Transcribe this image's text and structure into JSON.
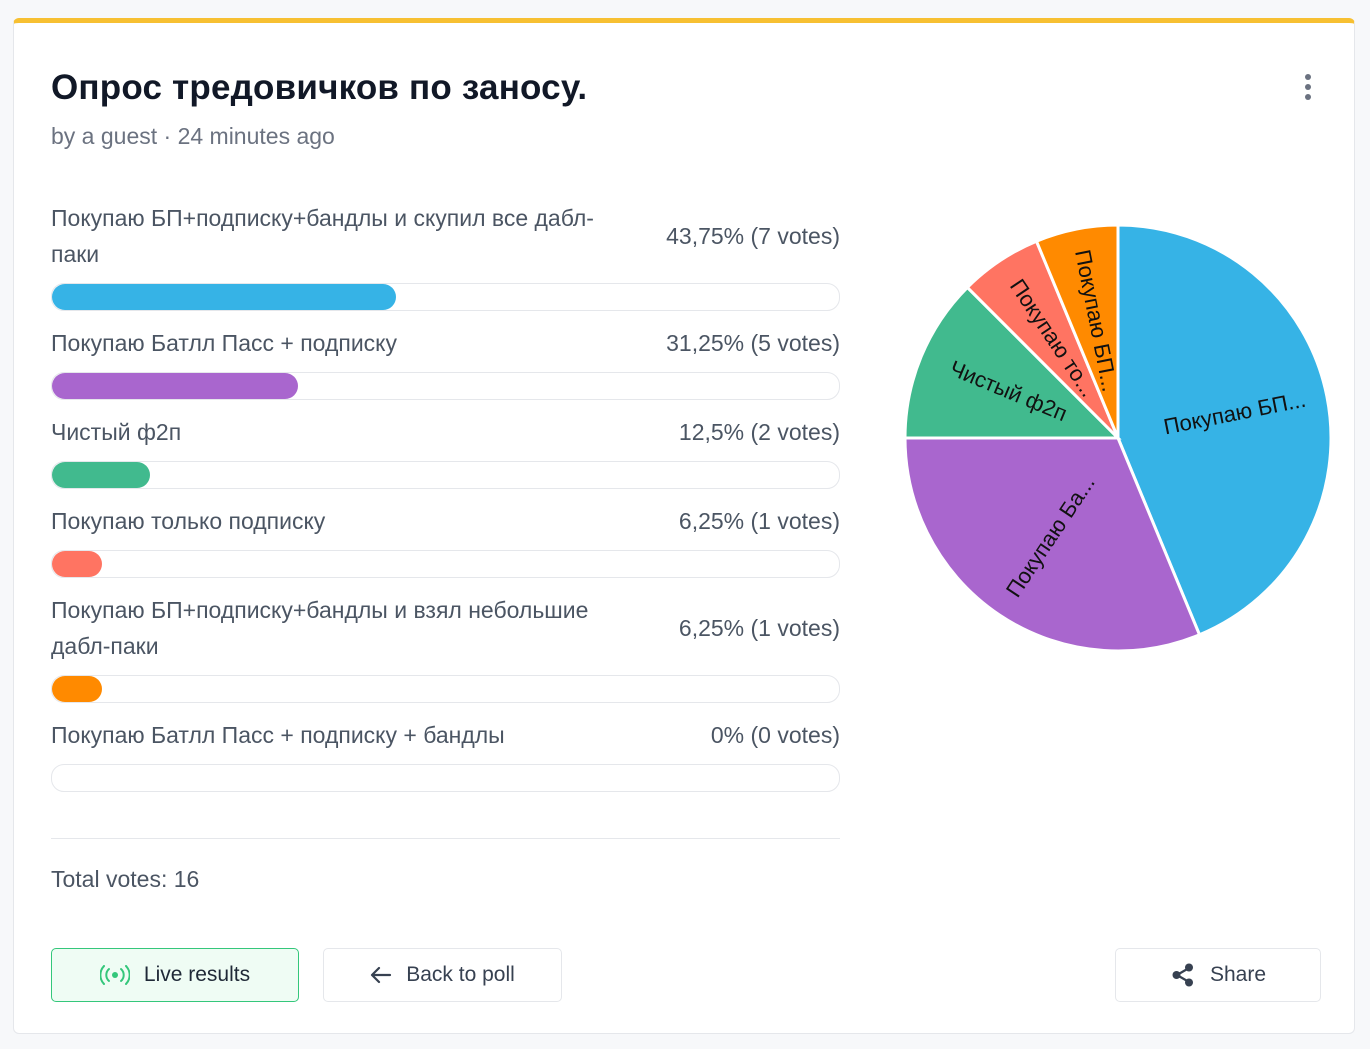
{
  "poll": {
    "title": "Опрос тредовичков по заносу.",
    "meta": "by a guest · 24 minutes ago",
    "total_label": "Total votes: 16"
  },
  "options": [
    {
      "label": "Покупаю БП+подписку+бандлы и скупил все дабл-паки",
      "value_label": "43,75% (7 votes)",
      "percent": 43.75,
      "votes": 7,
      "color": "#36b3e6",
      "pie_label": "Покупаю БП..."
    },
    {
      "label": "Покупаю Батлл Пасс + подписку",
      "value_label": "31,25% (5 votes)",
      "percent": 31.25,
      "votes": 5,
      "color": "#a966ce",
      "pie_label": "Покупаю Ба..."
    },
    {
      "label": "Чистый ф2п",
      "value_label": "12,5% (2 votes)",
      "percent": 12.5,
      "votes": 2,
      "color": "#41ba8e",
      "pie_label": "Чистый ф2п"
    },
    {
      "label": "Покупаю только подписку",
      "value_label": "6,25% (1 votes)",
      "percent": 6.25,
      "votes": 1,
      "color": "#ff7462",
      "pie_label": "Покупаю то..."
    },
    {
      "label": "Покупаю БП+подписку+бандлы и взял небольшие дабл-паки",
      "value_label": "6,25% (1 votes)",
      "percent": 6.25,
      "votes": 1,
      "color": "#ff8a00",
      "pie_label": "Покупаю БП..."
    },
    {
      "label": "Покупаю Батлл Пасс + подписку + бандлы",
      "value_label": "0% (0 votes)",
      "percent": 0,
      "votes": 0,
      "color": "#cccccc",
      "pie_label": ""
    }
  ],
  "buttons": {
    "live": "Live results",
    "back": "Back to poll",
    "share": "Share"
  },
  "icons": {
    "menu": "more-vertical-icon",
    "live": "broadcast-icon",
    "back": "arrow-left-icon",
    "share": "share-icon"
  },
  "chart_data": {
    "type": "pie",
    "categories": [
      "Покупаю БП...",
      "Покупаю Ба...",
      "Чистый ф2п",
      "Покупаю то...",
      "Покупаю БП..."
    ],
    "values": [
      43.75,
      31.25,
      12.5,
      6.25,
      6.25
    ],
    "colors": [
      "#36b3e6",
      "#a966ce",
      "#41ba8e",
      "#ff7462",
      "#ff8a00"
    ]
  }
}
